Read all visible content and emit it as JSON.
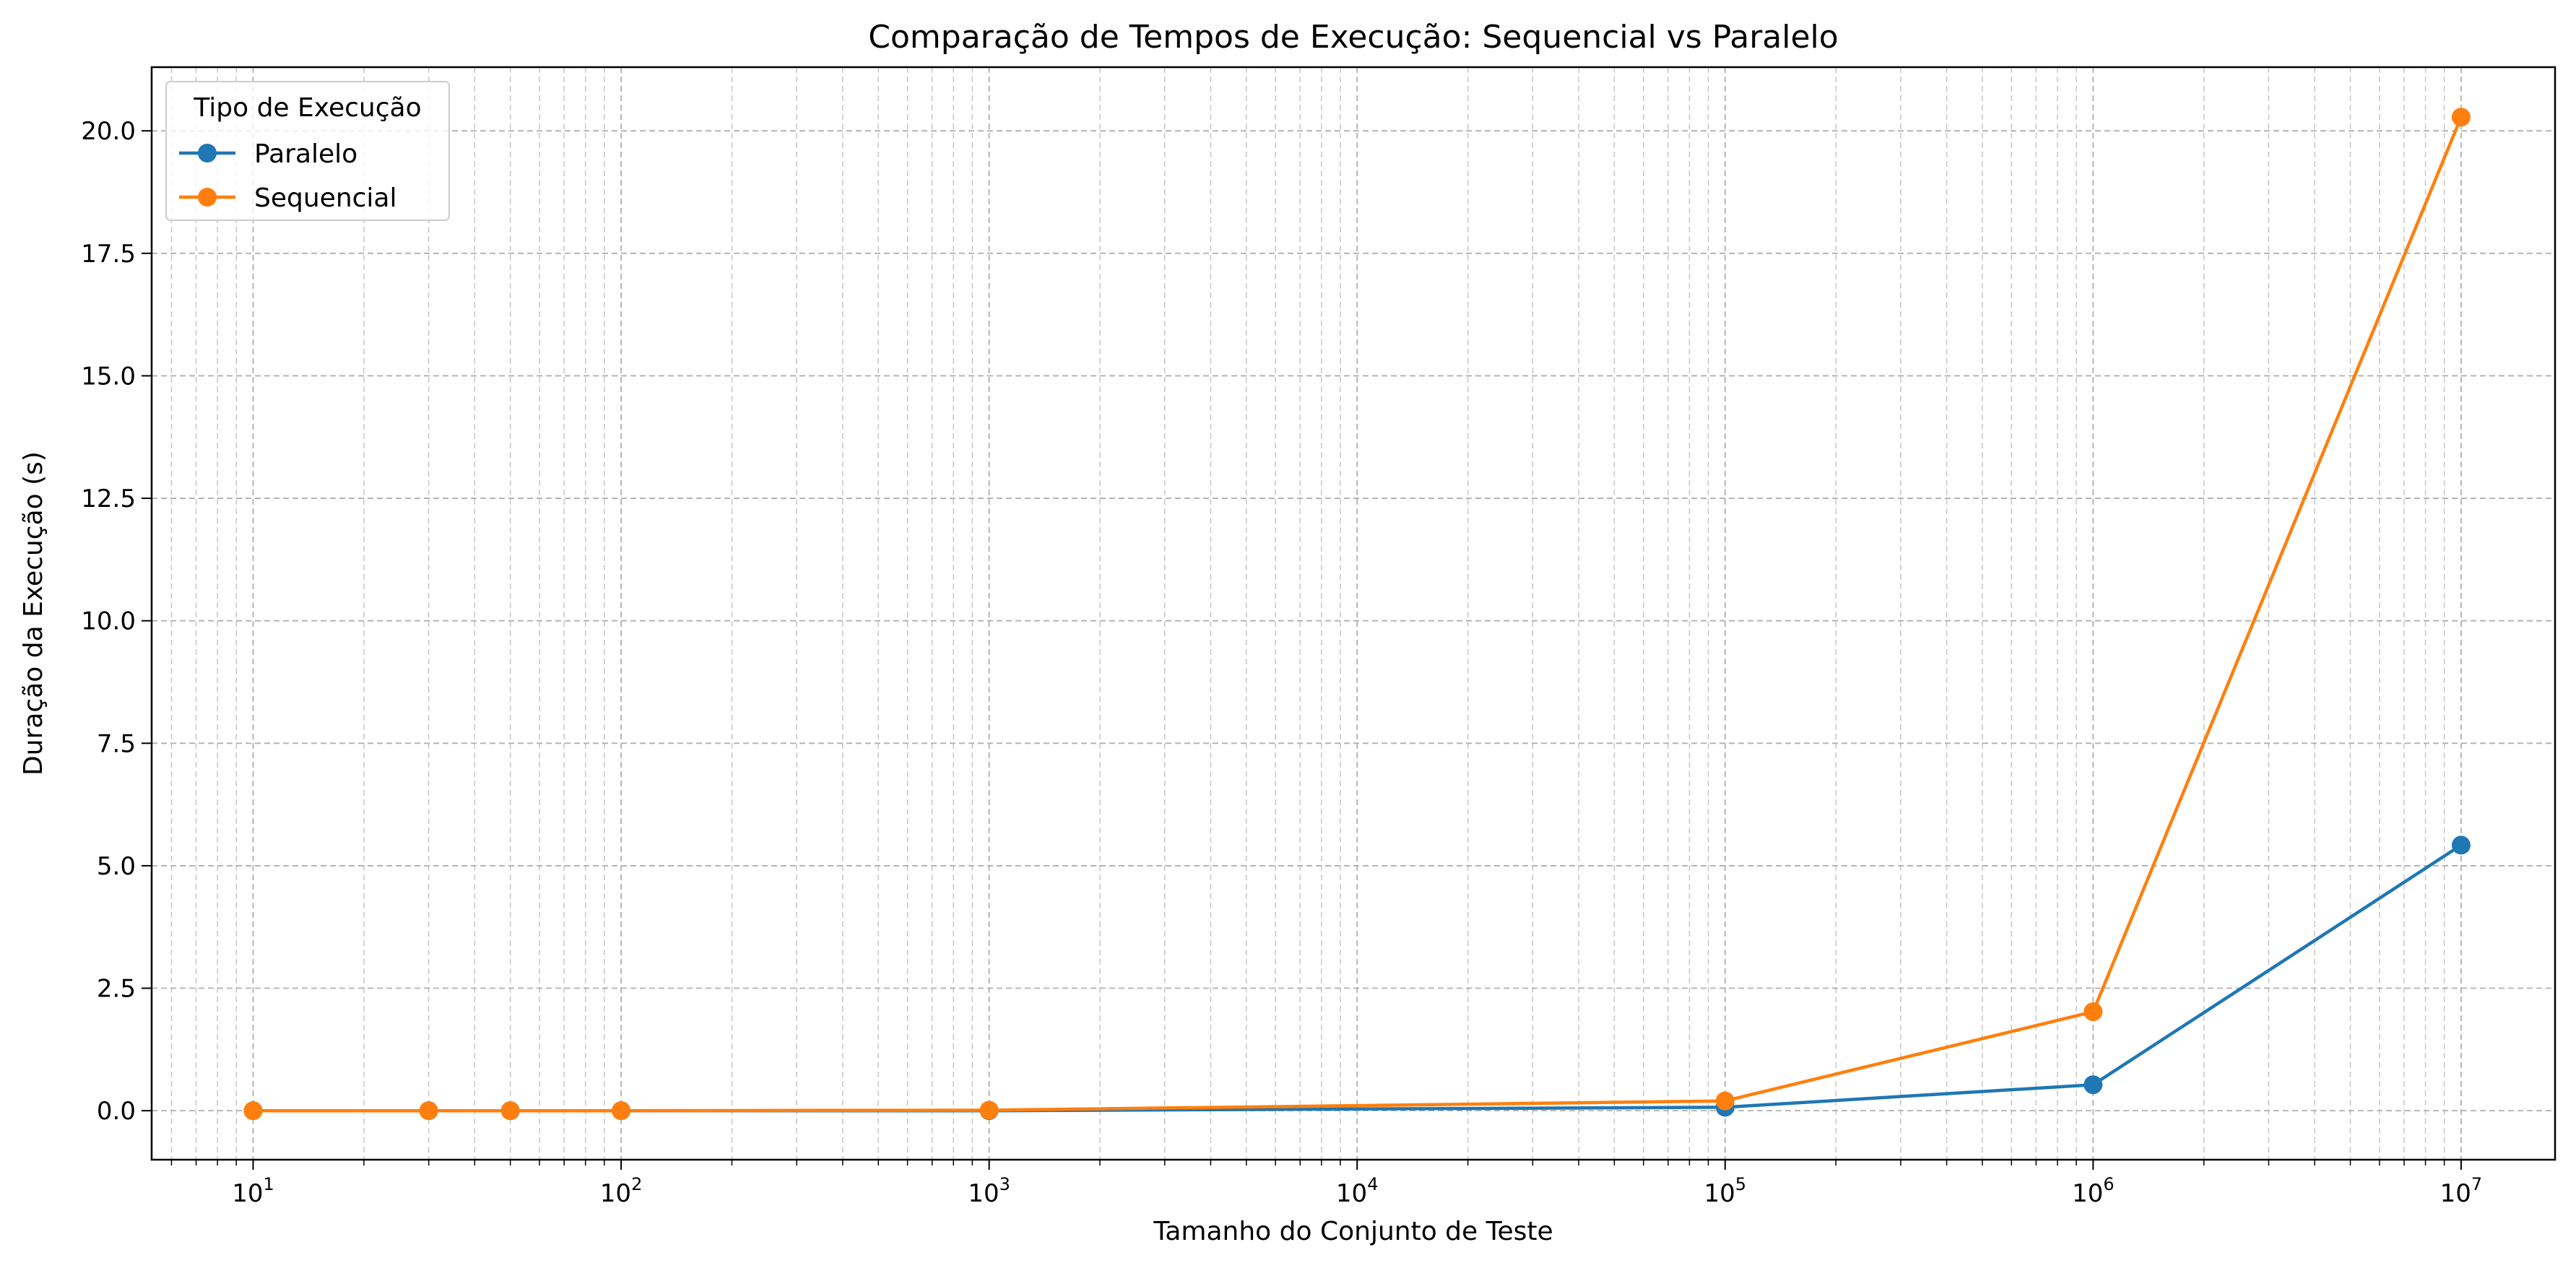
{
  "chart_data": {
    "type": "line",
    "title": "Comparação de Tempos de Execução: Sequencial vs Paralelo",
    "xlabel": "Tamanho do Conjunto de Teste",
    "ylabel": "Duração da Execução (s)",
    "xscale": "log",
    "xlim": [
      5.3,
      18000000.0
    ],
    "ylim": [
      -1.0,
      21.3
    ],
    "grid": true,
    "legend": {
      "title": "Tipo de Execução",
      "position": "top-left"
    },
    "x_ticks": [
      {
        "value": 10,
        "base": "10",
        "exp": "1"
      },
      {
        "value": 100,
        "base": "10",
        "exp": "2"
      },
      {
        "value": 1000,
        "base": "10",
        "exp": "3"
      },
      {
        "value": 10000,
        "base": "10",
        "exp": "4"
      },
      {
        "value": 100000,
        "base": "10",
        "exp": "5"
      },
      {
        "value": 1000000,
        "base": "10",
        "exp": "6"
      },
      {
        "value": 10000000,
        "base": "10",
        "exp": "7"
      }
    ],
    "y_ticks": [
      {
        "value": 0,
        "label": "0.0"
      },
      {
        "value": 2.5,
        "label": "2.5"
      },
      {
        "value": 5,
        "label": "5.0"
      },
      {
        "value": 7.5,
        "label": "7.5"
      },
      {
        "value": 10,
        "label": "10.0"
      },
      {
        "value": 12.5,
        "label": "12.5"
      },
      {
        "value": 15,
        "label": "15.0"
      },
      {
        "value": 17.5,
        "label": "17.5"
      },
      {
        "value": 20,
        "label": "20.0"
      }
    ],
    "series": [
      {
        "name": "Paralelo",
        "color": "#1f77b4",
        "x": [
          10,
          30,
          50,
          100,
          1000,
          100000,
          1000000,
          10000000
        ],
        "y": [
          0.0,
          0.0,
          0.0,
          0.0,
          0.0,
          0.07,
          0.53,
          5.42
        ]
      },
      {
        "name": "Sequencial",
        "color": "#ff7f0e",
        "x": [
          10,
          30,
          50,
          100,
          1000,
          100000,
          1000000,
          10000000
        ],
        "y": [
          0.0,
          0.0,
          0.0,
          0.0,
          0.01,
          0.2,
          2.02,
          20.28
        ]
      }
    ]
  }
}
